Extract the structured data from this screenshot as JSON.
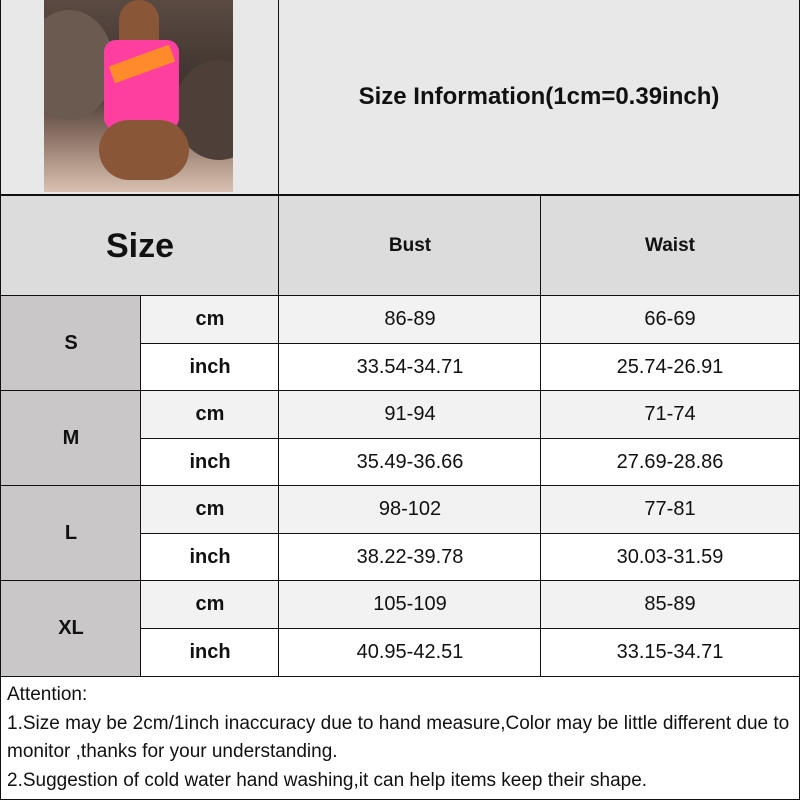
{
  "header": {
    "title": "Size Information(1cm=0.39inch)",
    "photo": "model-in-pink-orange-swimsuit-photo"
  },
  "columns": {
    "size": "Size",
    "bust": "Bust",
    "waist": "Waist"
  },
  "rows": [
    {
      "size": "S",
      "cm": {
        "unit": "cm",
        "bust": "86-89",
        "waist": "66-69"
      },
      "inch": {
        "unit": "inch",
        "bust": "33.54-34.71",
        "waist": "25.74-26.91"
      }
    },
    {
      "size": "M",
      "cm": {
        "unit": "cm",
        "bust": "91-94",
        "waist": "71-74"
      },
      "inch": {
        "unit": "inch",
        "bust": "35.49-36.66",
        "waist": "27.69-28.86"
      }
    },
    {
      "size": "L",
      "cm": {
        "unit": "cm",
        "bust": "98-102",
        "waist": "77-81"
      },
      "inch": {
        "unit": "inch",
        "bust": "38.22-39.78",
        "waist": "30.03-31.59"
      }
    },
    {
      "size": "XL",
      "cm": {
        "unit": "cm",
        "bust": "105-109",
        "waist": "85-89"
      },
      "inch": {
        "unit": "inch",
        "bust": "40.95-42.51",
        "waist": "33.15-34.71"
      }
    }
  ],
  "attention": {
    "title": "Attention:",
    "line1": "1.Size may be 2cm/1inch inaccuracy due to hand measure,Color may be little different due to monitor ,thanks for your understanding.",
    "line2": "2.Suggestion of cold water hand washing,it can help items keep their shape."
  },
  "colors": {
    "header": "#dcdcdc",
    "size_cell": "#c9c7c7",
    "cm_row": "#f2f2f2",
    "inch_row": "#ffffff"
  }
}
